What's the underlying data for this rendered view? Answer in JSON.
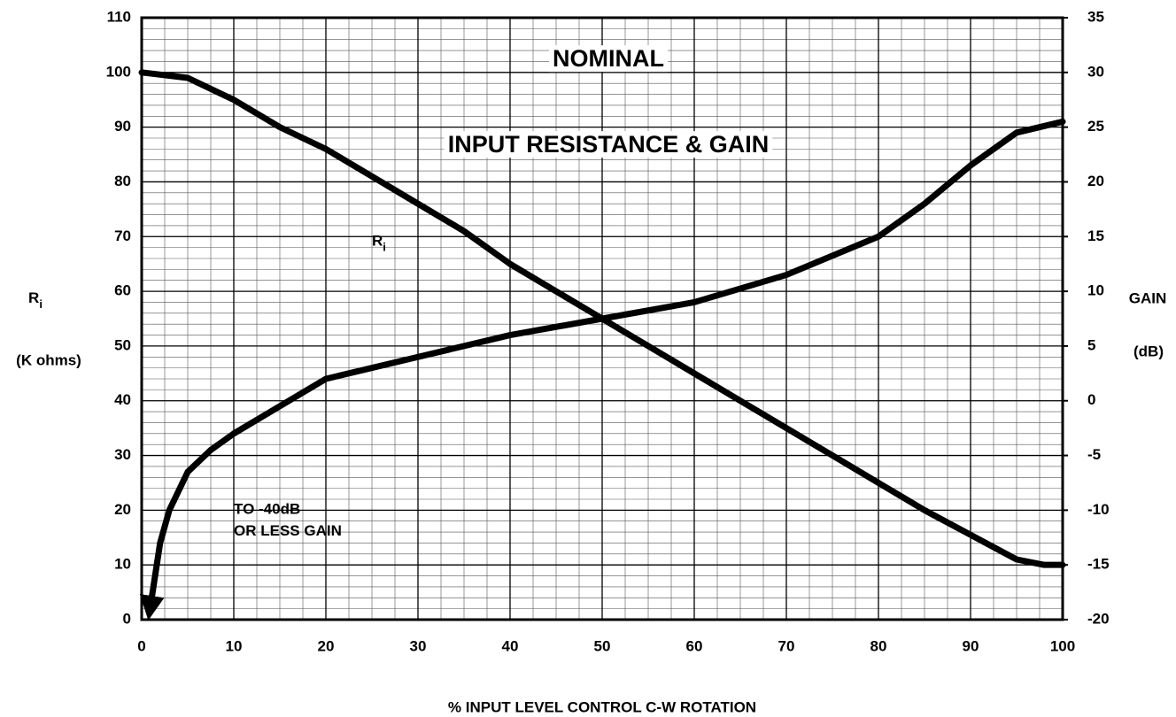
{
  "chart_data": {
    "type": "line",
    "title": "NOMINAL",
    "subtitle": "INPUT RESISTANCE & GAIN",
    "xlabel": "% INPUT LEVEL CONTROL C-W ROTATION",
    "ylabel": {
      "symbol": "R",
      "subscript": "i",
      "unit": "(K ohms)"
    },
    "y2label": {
      "name": "GAIN",
      "unit": "(dB)"
    },
    "xlim": [
      0,
      100
    ],
    "xticks": [
      0,
      10,
      20,
      30,
      40,
      50,
      60,
      70,
      80,
      90,
      100
    ],
    "ylim": [
      0,
      110
    ],
    "yticks": [
      0,
      10,
      20,
      30,
      40,
      50,
      60,
      70,
      80,
      90,
      100,
      110
    ],
    "y2lim": [
      -20,
      35
    ],
    "y2ticks": [
      -20,
      -15,
      -10,
      -5,
      0,
      5,
      10,
      15,
      20,
      25,
      30,
      35
    ],
    "grid": true,
    "xminor": 2.5,
    "yminor": 2,
    "color": "#000000",
    "series": [
      {
        "x": [
          0,
          5,
          10,
          15,
          20,
          25,
          30,
          35,
          40,
          45,
          50,
          55,
          60,
          65,
          70,
          75,
          80,
          85,
          90,
          95,
          98,
          100
        ],
        "values": [
          100,
          99,
          95,
          90,
          86,
          81,
          76,
          71,
          65,
          60,
          55,
          50,
          45,
          40,
          35,
          30,
          25,
          20,
          15.5,
          11,
          10,
          10
        ]
      },
      {
        "axis": "y2",
        "arrow": true,
        "x": [
          1,
          2,
          3,
          5,
          7.5,
          10,
          15,
          20,
          30,
          40,
          50,
          60,
          70,
          80,
          85,
          90,
          95,
          100
        ],
        "values": [
          -18.5,
          -13,
          -10,
          -6.5,
          -4.5,
          -3,
          -0.5,
          2,
          4,
          6,
          7.5,
          9,
          11.5,
          15,
          18,
          21.5,
          24.5,
          25.5
        ]
      }
    ],
    "annotations": [
      {
        "text": "R",
        "subscript": "i",
        "x": 25,
        "y": 69
      },
      {
        "text": "TO -40dB",
        "x": 10,
        "y": 20
      },
      {
        "text": "OR LESS GAIN",
        "x": 10,
        "y": 16
      }
    ]
  }
}
